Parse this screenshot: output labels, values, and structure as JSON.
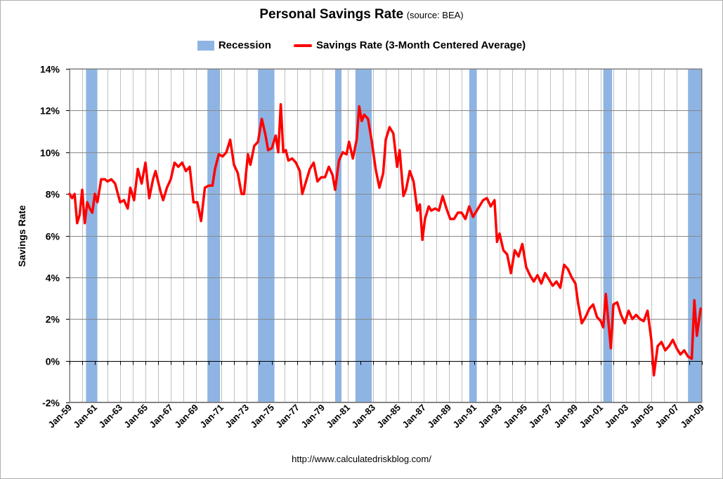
{
  "chart_data": {
    "type": "line",
    "title": "Personal Savings Rate",
    "subtitle": "(source: BEA)",
    "xlabel": "",
    "ylabel": "Savings Rate",
    "x_tick_labels": [
      "Jan-59",
      "Jan-61",
      "Jan-63",
      "Jan-65",
      "Jan-67",
      "Jan-69",
      "Jan-71",
      "Jan-73",
      "Jan-75",
      "Jan-77",
      "Jan-79",
      "Jan-81",
      "Jan-83",
      "Jan-85",
      "Jan-87",
      "Jan-89",
      "Jan-91",
      "Jan-93",
      "Jan-95",
      "Jan-97",
      "Jan-99",
      "Jan-01",
      "Jan-03",
      "Jan-05",
      "Jan-07",
      "Jan-09"
    ],
    "x_range": [
      1959.0,
      2009.0
    ],
    "ylim": [
      -2,
      14
    ],
    "y_ticks": [
      -2,
      0,
      2,
      4,
      6,
      8,
      10,
      12,
      14
    ],
    "y_tick_labels": [
      "-2%",
      "0%",
      "2%",
      "4%",
      "6%",
      "8%",
      "10%",
      "12%",
      "14%"
    ],
    "grid": "on",
    "legend_position": "top-center",
    "series": [
      {
        "name": "Savings Rate (3-Month Centered Average)",
        "color": "#ff0000",
        "points": [
          [
            1959.0,
            8.0
          ],
          [
            1959.2,
            7.8
          ],
          [
            1959.4,
            8.0
          ],
          [
            1959.6,
            6.6
          ],
          [
            1959.8,
            7.0
          ],
          [
            1960.0,
            8.2
          ],
          [
            1960.2,
            6.6
          ],
          [
            1960.4,
            7.6
          ],
          [
            1960.6,
            7.3
          ],
          [
            1960.8,
            7.1
          ],
          [
            1961.0,
            8.0
          ],
          [
            1961.2,
            7.6
          ],
          [
            1961.5,
            8.7
          ],
          [
            1961.8,
            8.7
          ],
          [
            1962.0,
            8.6
          ],
          [
            1962.3,
            8.7
          ],
          [
            1962.6,
            8.5
          ],
          [
            1963.0,
            7.6
          ],
          [
            1963.3,
            7.7
          ],
          [
            1963.6,
            7.3
          ],
          [
            1963.8,
            8.3
          ],
          [
            1964.1,
            7.7
          ],
          [
            1964.4,
            9.2
          ],
          [
            1964.7,
            8.5
          ],
          [
            1965.0,
            9.5
          ],
          [
            1965.3,
            7.8
          ],
          [
            1965.6,
            8.7
          ],
          [
            1965.8,
            9.1
          ],
          [
            1966.2,
            8.1
          ],
          [
            1966.4,
            7.7
          ],
          [
            1966.7,
            8.3
          ],
          [
            1967.0,
            8.7
          ],
          [
            1967.3,
            9.5
          ],
          [
            1967.6,
            9.3
          ],
          [
            1967.9,
            9.5
          ],
          [
            1968.2,
            9.1
          ],
          [
            1968.5,
            9.3
          ],
          [
            1968.8,
            7.6
          ],
          [
            1969.1,
            7.6
          ],
          [
            1969.4,
            6.7
          ],
          [
            1969.7,
            8.3
          ],
          [
            1970.0,
            8.4
          ],
          [
            1970.3,
            8.4
          ],
          [
            1970.5,
            9.2
          ],
          [
            1970.8,
            9.9
          ],
          [
            1971.1,
            9.8
          ],
          [
            1971.4,
            10.0
          ],
          [
            1971.7,
            10.6
          ],
          [
            1972.0,
            9.4
          ],
          [
            1972.3,
            9.0
          ],
          [
            1972.6,
            8.0
          ],
          [
            1972.8,
            8.0
          ],
          [
            1973.1,
            9.9
          ],
          [
            1973.3,
            9.4
          ],
          [
            1973.6,
            10.3
          ],
          [
            1973.9,
            10.5
          ],
          [
            1974.2,
            11.6
          ],
          [
            1974.5,
            10.8
          ],
          [
            1974.7,
            10.1
          ],
          [
            1975.0,
            10.2
          ],
          [
            1975.3,
            10.8
          ],
          [
            1975.5,
            10.0
          ],
          [
            1975.7,
            12.3
          ],
          [
            1975.9,
            10.0
          ],
          [
            1976.1,
            10.1
          ],
          [
            1976.3,
            9.6
          ],
          [
            1976.6,
            9.7
          ],
          [
            1976.9,
            9.5
          ],
          [
            1977.2,
            9.1
          ],
          [
            1977.4,
            8.0
          ],
          [
            1977.7,
            8.6
          ],
          [
            1978.0,
            9.2
          ],
          [
            1978.3,
            9.5
          ],
          [
            1978.6,
            8.6
          ],
          [
            1978.9,
            8.8
          ],
          [
            1979.2,
            8.8
          ],
          [
            1979.5,
            9.3
          ],
          [
            1979.8,
            8.9
          ],
          [
            1980.0,
            8.2
          ],
          [
            1980.3,
            9.6
          ],
          [
            1980.6,
            10.0
          ],
          [
            1980.9,
            9.9
          ],
          [
            1981.1,
            10.5
          ],
          [
            1981.4,
            9.7
          ],
          [
            1981.7,
            10.6
          ],
          [
            1981.9,
            12.2
          ],
          [
            1982.1,
            11.5
          ],
          [
            1982.3,
            11.8
          ],
          [
            1982.6,
            11.6
          ],
          [
            1982.9,
            10.5
          ],
          [
            1983.2,
            9.2
          ],
          [
            1983.5,
            8.3
          ],
          [
            1983.8,
            9.0
          ],
          [
            1984.0,
            10.6
          ],
          [
            1984.3,
            11.2
          ],
          [
            1984.6,
            10.9
          ],
          [
            1984.9,
            9.3
          ],
          [
            1985.1,
            10.1
          ],
          [
            1985.4,
            7.9
          ],
          [
            1985.6,
            8.2
          ],
          [
            1985.9,
            9.1
          ],
          [
            1986.2,
            8.6
          ],
          [
            1986.5,
            7.2
          ],
          [
            1986.7,
            7.5
          ],
          [
            1986.9,
            5.8
          ],
          [
            1987.1,
            6.8
          ],
          [
            1987.4,
            7.4
          ],
          [
            1987.6,
            7.2
          ],
          [
            1987.9,
            7.3
          ],
          [
            1988.2,
            7.2
          ],
          [
            1988.5,
            7.9
          ],
          [
            1988.8,
            7.3
          ],
          [
            1989.1,
            6.8
          ],
          [
            1989.4,
            6.8
          ],
          [
            1989.7,
            7.1
          ],
          [
            1990.0,
            7.1
          ],
          [
            1990.3,
            6.8
          ],
          [
            1990.6,
            7.4
          ],
          [
            1990.9,
            6.9
          ],
          [
            1991.1,
            7.1
          ],
          [
            1991.4,
            7.4
          ],
          [
            1991.7,
            7.7
          ],
          [
            1992.0,
            7.8
          ],
          [
            1992.3,
            7.4
          ],
          [
            1992.6,
            7.7
          ],
          [
            1992.8,
            5.7
          ],
          [
            1993.0,
            6.1
          ],
          [
            1993.3,
            5.3
          ],
          [
            1993.6,
            5.1
          ],
          [
            1993.9,
            4.2
          ],
          [
            1994.2,
            5.3
          ],
          [
            1994.5,
            5.0
          ],
          [
            1994.8,
            5.6
          ],
          [
            1995.1,
            4.5
          ],
          [
            1995.4,
            4.1
          ],
          [
            1995.7,
            3.8
          ],
          [
            1996.0,
            4.1
          ],
          [
            1996.3,
            3.7
          ],
          [
            1996.6,
            4.2
          ],
          [
            1996.9,
            3.9
          ],
          [
            1997.2,
            3.6
          ],
          [
            1997.5,
            3.8
          ],
          [
            1997.8,
            3.5
          ],
          [
            1998.1,
            4.6
          ],
          [
            1998.4,
            4.4
          ],
          [
            1998.7,
            4.0
          ],
          [
            1999.0,
            3.7
          ],
          [
            1999.2,
            2.8
          ],
          [
            1999.5,
            1.8
          ],
          [
            1999.8,
            2.1
          ],
          [
            2000.1,
            2.5
          ],
          [
            2000.4,
            2.7
          ],
          [
            2000.7,
            2.1
          ],
          [
            2001.0,
            1.9
          ],
          [
            2001.2,
            1.6
          ],
          [
            2001.4,
            3.2
          ],
          [
            2001.6,
            1.9
          ],
          [
            2001.8,
            0.6
          ],
          [
            2002.0,
            2.7
          ],
          [
            2002.3,
            2.8
          ],
          [
            2002.6,
            2.2
          ],
          [
            2002.9,
            1.8
          ],
          [
            2003.2,
            2.4
          ],
          [
            2003.5,
            2.0
          ],
          [
            2003.8,
            2.2
          ],
          [
            2004.1,
            2.0
          ],
          [
            2004.4,
            1.9
          ],
          [
            2004.7,
            2.4
          ],
          [
            2005.0,
            1.0
          ],
          [
            2005.2,
            -0.7
          ],
          [
            2005.5,
            0.7
          ],
          [
            2005.8,
            0.9
          ],
          [
            2006.1,
            0.5
          ],
          [
            2006.4,
            0.7
          ],
          [
            2006.7,
            1.0
          ],
          [
            2007.0,
            0.6
          ],
          [
            2007.3,
            0.3
          ],
          [
            2007.6,
            0.5
          ],
          [
            2007.9,
            0.2
          ],
          [
            2008.2,
            0.1
          ],
          [
            2008.4,
            2.9
          ],
          [
            2008.6,
            1.2
          ],
          [
            2008.9,
            2.5
          ]
        ]
      }
    ],
    "recessions": {
      "name": "Recession",
      "color": "#8eb4e3",
      "periods": [
        [
          1960.3,
          1961.2
        ],
        [
          1969.9,
          1970.9
        ],
        [
          1973.9,
          1975.2
        ],
        [
          1980.0,
          1980.5
        ],
        [
          1981.6,
          1982.9
        ],
        [
          1990.6,
          1991.2
        ],
        [
          2001.2,
          2001.9
        ],
        [
          2007.9,
          2009.0
        ]
      ]
    }
  },
  "source": "http://www.calculatedriskblog.com/"
}
